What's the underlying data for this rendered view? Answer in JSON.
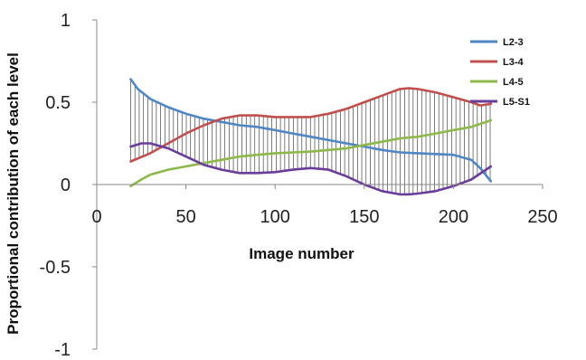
{
  "chart_data": {
    "type": "line",
    "title": "",
    "xlabel": "Image number",
    "ylabel": "Proportional contribution of each level",
    "xlim": [
      0,
      250
    ],
    "ylim": [
      -1,
      1
    ],
    "xticks": [
      0,
      50,
      100,
      150,
      200,
      250
    ],
    "yticks": [
      -1,
      -0.5,
      0,
      0.5,
      1
    ],
    "xtick_labels": [
      "0",
      "50",
      "100",
      "150",
      "200",
      "250"
    ],
    "ytick_labels": [
      "-1",
      "-0.5",
      "0",
      "0.5",
      "1"
    ],
    "grid": false,
    "legend_position": "top-right",
    "hatch_between": [
      "L2-3",
      "L3-4",
      "L5-S1"
    ],
    "series": [
      {
        "name": "L2-3",
        "color": "#4f86c6",
        "x": [
          19,
          23,
          30,
          40,
          50,
          60,
          70,
          80,
          90,
          100,
          110,
          120,
          130,
          140,
          150,
          160,
          170,
          180,
          190,
          200,
          210,
          215,
          221
        ],
        "y": [
          0.64,
          0.58,
          0.52,
          0.47,
          0.43,
          0.4,
          0.38,
          0.36,
          0.35,
          0.33,
          0.31,
          0.29,
          0.27,
          0.25,
          0.23,
          0.21,
          0.195,
          0.19,
          0.185,
          0.18,
          0.15,
          0.1,
          0.02
        ]
      },
      {
        "name": "L3-4",
        "color": "#c0504d",
        "x": [
          19,
          30,
          40,
          50,
          60,
          70,
          80,
          90,
          100,
          110,
          120,
          130,
          140,
          150,
          160,
          170,
          175,
          180,
          190,
          200,
          210,
          215,
          221
        ],
        "y": [
          0.14,
          0.19,
          0.25,
          0.31,
          0.36,
          0.4,
          0.42,
          0.42,
          0.41,
          0.41,
          0.41,
          0.43,
          0.46,
          0.5,
          0.54,
          0.58,
          0.585,
          0.58,
          0.56,
          0.53,
          0.5,
          0.48,
          0.49
        ]
      },
      {
        "name": "L4-5",
        "color": "#8db84a",
        "x": [
          19,
          25,
          30,
          40,
          50,
          60,
          70,
          80,
          90,
          100,
          110,
          120,
          130,
          140,
          150,
          160,
          170,
          180,
          190,
          200,
          210,
          221
        ],
        "y": [
          -0.01,
          0.03,
          0.06,
          0.09,
          0.11,
          0.13,
          0.15,
          0.17,
          0.18,
          0.19,
          0.195,
          0.2,
          0.21,
          0.22,
          0.24,
          0.26,
          0.28,
          0.29,
          0.31,
          0.33,
          0.35,
          0.39
        ]
      },
      {
        "name": "L5-S1",
        "color": "#6a3d9a",
        "x": [
          19,
          25,
          30,
          40,
          50,
          60,
          70,
          80,
          90,
          100,
          110,
          120,
          130,
          140,
          150,
          160,
          170,
          175,
          180,
          190,
          200,
          210,
          221
        ],
        "y": [
          0.23,
          0.25,
          0.25,
          0.22,
          0.17,
          0.12,
          0.09,
          0.07,
          0.07,
          0.075,
          0.09,
          0.1,
          0.09,
          0.05,
          0.0,
          -0.04,
          -0.06,
          -0.06,
          -0.055,
          -0.04,
          -0.01,
          0.03,
          0.11
        ]
      }
    ]
  }
}
